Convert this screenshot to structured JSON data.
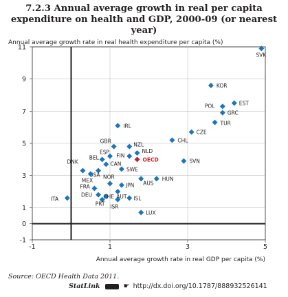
{
  "title_line1": "7.2.3 Annual average growth in real per capita",
  "title_line2": "expenditure on health and GDP, 2000-09 (or nearest year)",
  "source_label": "Source:",
  "source_text": "OECD Health Data 2011.",
  "statlink": {
    "brand": "StatLink",
    "url": "http://dx.doi.org/10.1787/888932526141"
  },
  "colors": {
    "point": "#1b75bc",
    "highlight": "#c0272d",
    "axis_zero": "#231f20",
    "grid": "#bfbfbf"
  },
  "chart_data": {
    "type": "scatter",
    "xlabel": "Annual average growth rate in real GDP per capita (%)",
    "ylabel": "Annual average growth rate in real health expenditure per capita (%)",
    "xlim": [
      -1,
      5
    ],
    "ylim": [
      -1,
      11
    ],
    "xticks": [
      -1,
      1,
      3,
      5
    ],
    "yticks": [
      -1,
      0,
      1,
      3,
      5,
      7,
      9,
      11
    ],
    "x_tick_labels": [
      "-1",
      "1",
      "3",
      "5"
    ],
    "y_tick_labels": [
      "-1",
      "0",
      "1",
      "3",
      "5",
      "7",
      "9",
      "11"
    ],
    "grid": true,
    "highlight_label": "OECD",
    "points": [
      {
        "label": "SVK",
        "x": 4.9,
        "y": 10.9
      },
      {
        "label": "KOR",
        "x": 3.6,
        "y": 8.6
      },
      {
        "label": "EST",
        "x": 4.2,
        "y": 7.5
      },
      {
        "label": "POL",
        "x": 3.9,
        "y": 7.3
      },
      {
        "label": "GRC",
        "x": 3.9,
        "y": 6.9
      },
      {
        "label": "TUR",
        "x": 3.7,
        "y": 6.3
      },
      {
        "label": "CZE",
        "x": 3.1,
        "y": 5.7
      },
      {
        "label": "CHL",
        "x": 2.6,
        "y": 5.2
      },
      {
        "label": "SVN",
        "x": 2.9,
        "y": 3.9
      },
      {
        "label": "IRL",
        "x": 1.2,
        "y": 6.1
      },
      {
        "label": "GBR",
        "x": 1.1,
        "y": 4.8
      },
      {
        "label": "NZL",
        "x": 1.5,
        "y": 4.8
      },
      {
        "label": "NLD",
        "x": 1.7,
        "y": 4.4
      },
      {
        "label": "FIN",
        "x": 1.5,
        "y": 4.2
      },
      {
        "label": "ESP",
        "x": 1.0,
        "y": 4.2
      },
      {
        "label": "OECD",
        "x": 1.7,
        "y": 4.0
      },
      {
        "label": "BEL",
        "x": 0.8,
        "y": 4.0
      },
      {
        "label": "CAN",
        "x": 0.9,
        "y": 3.7
      },
      {
        "label": "SWE",
        "x": 1.3,
        "y": 3.4
      },
      {
        "label": "DNK",
        "x": 0.3,
        "y": 3.3
      },
      {
        "label": "USA",
        "x": 0.7,
        "y": 3.3
      },
      {
        "label": "MEX",
        "x": 0.5,
        "y": 3.1
      },
      {
        "label": "HUN",
        "x": 2.2,
        "y": 2.8
      },
      {
        "label": "AUS",
        "x": 1.8,
        "y": 2.8
      },
      {
        "label": "NOR",
        "x": 1.0,
        "y": 2.5
      },
      {
        "label": "JPN",
        "x": 1.3,
        "y": 2.4
      },
      {
        "label": "FRA",
        "x": 0.6,
        "y": 2.2
      },
      {
        "label": "AUT",
        "x": 1.2,
        "y": 2.0
      },
      {
        "label": "DEU",
        "x": 0.7,
        "y": 1.8
      },
      {
        "label": "CHE",
        "x": 0.9,
        "y": 1.7
      },
      {
        "label": "ISL",
        "x": 1.5,
        "y": 1.6
      },
      {
        "label": "ITA",
        "x": -0.1,
        "y": 1.6
      },
      {
        "label": "PRT",
        "x": 0.8,
        "y": 1.5
      },
      {
        "label": "ISR",
        "x": 1.2,
        "y": 1.5
      },
      {
        "label": "LUX",
        "x": 1.8,
        "y": 0.7
      }
    ]
  }
}
